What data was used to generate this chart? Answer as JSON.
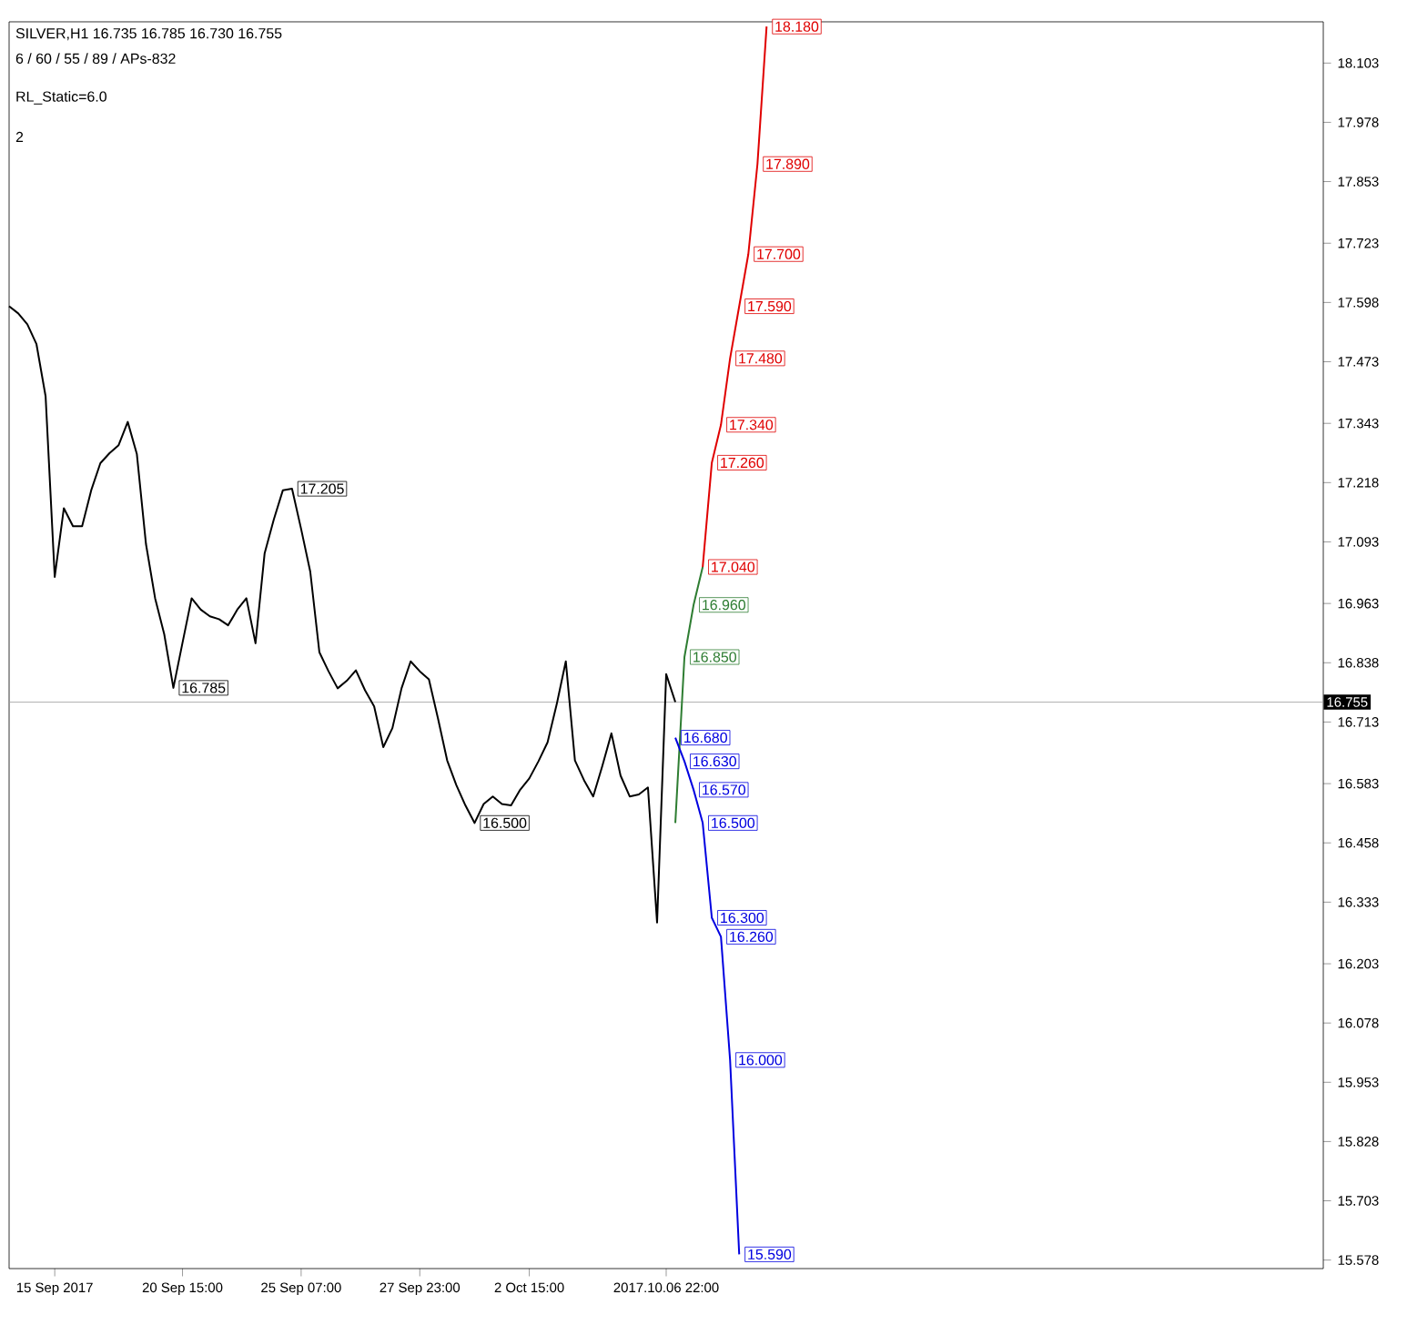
{
  "chart_data": {
    "type": "line",
    "title": "SILVER,H1  16.735 16.785 16.730 16.755",
    "subtitle": "6 / 60 / 55 / 89 / APs-832",
    "annotations": [
      "RL_Static=6.0",
      "2"
    ],
    "categories": [
      null,
      null,
      null,
      null,
      null,
      "15 Sep 2017",
      null,
      null,
      null,
      null,
      null,
      null,
      null,
      null,
      null,
      null,
      null,
      null,
      null,
      "20 Sep 15:00",
      null,
      null,
      null,
      null,
      null,
      null,
      null,
      null,
      null,
      null,
      null,
      null,
      "25 Sep 07:00",
      null,
      null,
      null,
      null,
      null,
      null,
      null,
      null,
      null,
      null,
      null,
      null,
      "27 Sep 23:00",
      null,
      null,
      null,
      null,
      null,
      null,
      null,
      null,
      null,
      null,
      null,
      "2 Oct 15:00",
      null,
      null,
      null,
      null,
      null,
      null,
      null,
      null,
      null,
      null,
      null,
      null,
      null,
      null,
      "2017.10.06 22:00",
      null,
      null,
      null,
      null,
      null,
      null,
      null,
      null,
      null,
      null,
      null,
      null,
      null,
      null,
      null,
      null,
      null,
      null,
      null,
      null,
      null,
      null,
      null,
      null,
      null,
      null,
      null,
      null,
      null,
      null,
      null,
      null,
      null,
      null,
      null,
      null,
      null,
      null,
      null,
      null,
      null,
      null,
      null,
      null,
      null,
      null,
      null,
      null,
      null,
      null,
      null,
      null,
      null,
      null,
      null,
      null,
      null,
      null,
      null,
      null,
      null,
      null,
      null,
      null,
      null,
      null,
      null,
      null,
      null,
      null,
      null,
      null
    ],
    "ylim": [
      15.56,
      18.19
    ],
    "yticks": [
      15.578,
      15.703,
      15.828,
      15.953,
      16.078,
      16.203,
      16.333,
      16.458,
      16.583,
      16.713,
      16.838,
      16.963,
      17.093,
      17.218,
      17.343,
      17.473,
      17.598,
      17.723,
      17.853,
      17.978,
      18.103
    ],
    "ref_lines": [
      {
        "axis": "y",
        "value": 16.755,
        "label": "16.755",
        "color": "#a0a0a0",
        "line_style": "solid"
      }
    ],
    "series": [
      {
        "color": "#000000",
        "values": [
          17.59,
          17.575,
          17.552,
          17.51,
          17.4,
          17.019,
          17.164,
          17.126,
          17.126,
          17.202,
          17.259,
          17.28,
          17.297,
          17.346,
          17.278,
          17.088,
          16.974,
          16.898,
          16.785,
          16.88,
          16.974,
          16.95,
          16.936,
          16.93,
          16.917,
          16.95,
          16.974,
          16.879,
          17.069,
          17.14,
          17.202,
          17.205,
          17.12,
          17.03,
          16.86,
          16.82,
          16.784,
          16.8,
          16.822,
          16.78,
          16.746,
          16.66,
          16.7,
          16.784,
          16.841,
          16.82,
          16.803,
          16.72,
          16.632,
          16.58,
          16.537,
          16.5,
          16.54,
          16.556,
          16.54,
          16.537,
          16.57,
          16.594,
          16.63,
          16.67,
          16.75,
          16.841,
          16.632,
          16.59,
          16.556,
          16.62,
          16.689,
          16.6,
          16.556,
          16.56,
          16.575,
          16.29,
          16.814,
          16.755,
          null,
          null,
          null,
          null,
          null,
          null,
          null,
          null,
          null,
          null,
          null,
          null,
          null,
          null,
          null,
          null,
          null,
          null,
          null,
          null,
          null,
          null,
          null,
          null,
          null,
          null,
          null,
          null,
          null,
          null,
          null,
          null,
          null,
          null,
          null,
          null,
          null,
          null,
          null,
          null,
          null,
          null,
          null,
          null,
          null,
          null,
          null,
          null,
          null,
          null,
          null,
          null,
          null,
          null,
          null,
          null,
          null,
          null,
          null,
          null,
          null,
          null,
          null,
          null,
          null,
          null,
          null,
          null,
          null,
          null,
          null
        ],
        "value_labels": [
          null,
          null,
          null,
          null,
          null,
          null,
          null,
          null,
          null,
          null,
          null,
          null,
          null,
          null,
          null,
          null,
          null,
          null,
          "16.785",
          null,
          null,
          null,
          null,
          null,
          null,
          null,
          null,
          null,
          null,
          null,
          null,
          "17.205",
          null,
          null,
          null,
          null,
          null,
          null,
          null,
          null,
          null,
          null,
          null,
          null,
          null,
          null,
          null,
          null,
          null,
          null,
          null,
          "16.500",
          null,
          null,
          null,
          null,
          null,
          null,
          null,
          null,
          null,
          null,
          null,
          null,
          null,
          null,
          null,
          null,
          null,
          null,
          null,
          null,
          null,
          null,
          null,
          null,
          null,
          null,
          null,
          null,
          null,
          null,
          null,
          null,
          null,
          null,
          null,
          null,
          null,
          null,
          null,
          null,
          null,
          null,
          null,
          null,
          null,
          null,
          null,
          null,
          null,
          null,
          null,
          null,
          null,
          null,
          null,
          null,
          null,
          null,
          null,
          null,
          null,
          null,
          null,
          null,
          null,
          null,
          null,
          null,
          null,
          null,
          null,
          null,
          null,
          null,
          null,
          null,
          null,
          null,
          null,
          null,
          null,
          null,
          null,
          null,
          null,
          null,
          null,
          null,
          null,
          null,
          null,
          null,
          null
        ]
      },
      {
        "type": "line",
        "color": "#2e7d32",
        "values": [
          null,
          null,
          null,
          null,
          null,
          null,
          null,
          null,
          null,
          null,
          null,
          null,
          null,
          null,
          null,
          null,
          null,
          null,
          null,
          null,
          null,
          null,
          null,
          null,
          null,
          null,
          null,
          null,
          null,
          null,
          null,
          null,
          null,
          null,
          null,
          null,
          null,
          null,
          null,
          null,
          null,
          null,
          null,
          null,
          null,
          null,
          null,
          null,
          null,
          null,
          null,
          null,
          null,
          null,
          null,
          null,
          null,
          null,
          null,
          null,
          null,
          null,
          null,
          null,
          null,
          null,
          null,
          null,
          null,
          null,
          null,
          null,
          null,
          16.5,
          16.85,
          16.96,
          17.04,
          null,
          null,
          null,
          null,
          null,
          null,
          null,
          null,
          null,
          null,
          null,
          null,
          null,
          null,
          null,
          null,
          null,
          null,
          null,
          null,
          null,
          null,
          null,
          null,
          null,
          null,
          null,
          null,
          null,
          null,
          null,
          null,
          null,
          null,
          null,
          null,
          null,
          null,
          null,
          null,
          null,
          null,
          null,
          null,
          null,
          null,
          null,
          null,
          null,
          null,
          null,
          null,
          null,
          null,
          null,
          null,
          null,
          null,
          null,
          null,
          null,
          null,
          null,
          null,
          null,
          null,
          null,
          null
        ],
        "value_labels": [
          null,
          null,
          null,
          null,
          null,
          null,
          null,
          null,
          null,
          null,
          null,
          null,
          null,
          null,
          null,
          null,
          null,
          null,
          null,
          null,
          null,
          null,
          null,
          null,
          null,
          null,
          null,
          null,
          null,
          null,
          null,
          null,
          null,
          null,
          null,
          null,
          null,
          null,
          null,
          null,
          null,
          null,
          null,
          null,
          null,
          null,
          null,
          null,
          null,
          null,
          null,
          null,
          null,
          null,
          null,
          null,
          null,
          null,
          null,
          null,
          null,
          null,
          null,
          null,
          null,
          null,
          null,
          null,
          null,
          null,
          null,
          null,
          null,
          null,
          "16.850",
          "16.960",
          null,
          null,
          null,
          null,
          null,
          null,
          null,
          null,
          null,
          null,
          null,
          null,
          null,
          null,
          null,
          null,
          null,
          null,
          null,
          null,
          null,
          null,
          null,
          null,
          null,
          null,
          null,
          null,
          null,
          null,
          null,
          null,
          null,
          null,
          null,
          null,
          null,
          null,
          null,
          null,
          null,
          null,
          null,
          null,
          null,
          null,
          null,
          null,
          null,
          null,
          null,
          null,
          null,
          null,
          null,
          null,
          null,
          null,
          null,
          null,
          null,
          null,
          null,
          null,
          null,
          null,
          null,
          null,
          null
        ]
      },
      {
        "type": "line",
        "color": "#e00000",
        "values": [
          null,
          null,
          null,
          null,
          null,
          null,
          null,
          null,
          null,
          null,
          null,
          null,
          null,
          null,
          null,
          null,
          null,
          null,
          null,
          null,
          null,
          null,
          null,
          null,
          null,
          null,
          null,
          null,
          null,
          null,
          null,
          null,
          null,
          null,
          null,
          null,
          null,
          null,
          null,
          null,
          null,
          null,
          null,
          null,
          null,
          null,
          null,
          null,
          null,
          null,
          null,
          null,
          null,
          null,
          null,
          null,
          null,
          null,
          null,
          null,
          null,
          null,
          null,
          null,
          null,
          null,
          null,
          null,
          null,
          null,
          null,
          null,
          null,
          null,
          null,
          null,
          17.04,
          17.26,
          17.34,
          17.48,
          17.59,
          17.7,
          17.89,
          18.18,
          null,
          null,
          null,
          null,
          null,
          null,
          null,
          null,
          null,
          null,
          null,
          null,
          null,
          null,
          null,
          null,
          null,
          null,
          null,
          null,
          null,
          null,
          null,
          null,
          null,
          null,
          null,
          null,
          null,
          null,
          null,
          null,
          null,
          null,
          null,
          null,
          null,
          null,
          null,
          null,
          null,
          null,
          null,
          null,
          null,
          null,
          null,
          null,
          null,
          null,
          null,
          null,
          null,
          null,
          null,
          null,
          null,
          null,
          null,
          null,
          null
        ],
        "value_labels": [
          null,
          null,
          null,
          null,
          null,
          null,
          null,
          null,
          null,
          null,
          null,
          null,
          null,
          null,
          null,
          null,
          null,
          null,
          null,
          null,
          null,
          null,
          null,
          null,
          null,
          null,
          null,
          null,
          null,
          null,
          null,
          null,
          null,
          null,
          null,
          null,
          null,
          null,
          null,
          null,
          null,
          null,
          null,
          null,
          null,
          null,
          null,
          null,
          null,
          null,
          null,
          null,
          null,
          null,
          null,
          null,
          null,
          null,
          null,
          null,
          null,
          null,
          null,
          null,
          null,
          null,
          null,
          null,
          null,
          null,
          null,
          null,
          null,
          null,
          null,
          null,
          "17.040",
          "17.260",
          "17.340",
          "17.480",
          "17.590",
          "17.700",
          "17.890",
          "18.180",
          null,
          null,
          null,
          null,
          null,
          null,
          null,
          null,
          null,
          null,
          null,
          null,
          null,
          null,
          null,
          null,
          null,
          null,
          null,
          null,
          null,
          null,
          null,
          null,
          null,
          null,
          null,
          null,
          null,
          null,
          null,
          null,
          null,
          null,
          null,
          null,
          null,
          null,
          null,
          null,
          null,
          null,
          null,
          null,
          null,
          null,
          null,
          null,
          null,
          null,
          null,
          null,
          null,
          null,
          null,
          null,
          null,
          null,
          null,
          null,
          null
        ]
      },
      {
        "type": "line",
        "color": "#0000e0",
        "values": [
          null,
          null,
          null,
          null,
          null,
          null,
          null,
          null,
          null,
          null,
          null,
          null,
          null,
          null,
          null,
          null,
          null,
          null,
          null,
          null,
          null,
          null,
          null,
          null,
          null,
          null,
          null,
          null,
          null,
          null,
          null,
          null,
          null,
          null,
          null,
          null,
          null,
          null,
          null,
          null,
          null,
          null,
          null,
          null,
          null,
          null,
          null,
          null,
          null,
          null,
          null,
          null,
          null,
          null,
          null,
          null,
          null,
          null,
          null,
          null,
          null,
          null,
          null,
          null,
          null,
          null,
          null,
          null,
          null,
          null,
          null,
          null,
          null,
          16.68,
          16.63,
          16.57,
          16.5,
          16.3,
          16.26,
          16.0,
          15.59,
          null,
          null,
          null,
          null,
          null,
          null,
          null,
          null,
          null,
          null,
          null,
          null,
          null,
          null,
          null,
          null,
          null,
          null,
          null,
          null,
          null,
          null,
          null,
          null,
          null,
          null,
          null,
          null,
          null,
          null,
          null,
          null,
          null,
          null,
          null,
          null,
          null,
          null,
          null,
          null,
          null,
          null,
          null,
          null,
          null,
          null,
          null,
          null,
          null,
          null,
          null,
          null,
          null,
          null,
          null,
          null,
          null,
          null,
          null,
          null,
          null,
          null,
          null,
          null
        ],
        "value_labels": [
          null,
          null,
          null,
          null,
          null,
          null,
          null,
          null,
          null,
          null,
          null,
          null,
          null,
          null,
          null,
          null,
          null,
          null,
          null,
          null,
          null,
          null,
          null,
          null,
          null,
          null,
          null,
          null,
          null,
          null,
          null,
          null,
          null,
          null,
          null,
          null,
          null,
          null,
          null,
          null,
          null,
          null,
          null,
          null,
          null,
          null,
          null,
          null,
          null,
          null,
          null,
          null,
          null,
          null,
          null,
          null,
          null,
          null,
          null,
          null,
          null,
          null,
          null,
          null,
          null,
          null,
          null,
          null,
          null,
          null,
          null,
          null,
          null,
          "16.680",
          "16.630",
          "16.570",
          "16.500",
          "16.300",
          "16.260",
          "16.000",
          "15.590",
          null,
          null,
          null,
          null,
          null,
          null,
          null,
          null,
          null,
          null,
          null,
          null,
          null,
          null,
          null,
          null,
          null,
          null,
          null,
          null,
          null,
          null,
          null,
          null,
          null,
          null,
          null,
          null,
          null,
          null,
          null,
          null,
          null,
          null,
          null,
          null,
          null,
          null,
          null,
          null,
          null,
          null,
          null,
          null,
          null,
          null,
          null,
          null,
          null,
          null,
          null,
          null,
          null,
          null,
          null,
          null,
          null,
          null,
          null,
          null,
          null,
          null,
          null,
          null
        ]
      }
    ]
  }
}
